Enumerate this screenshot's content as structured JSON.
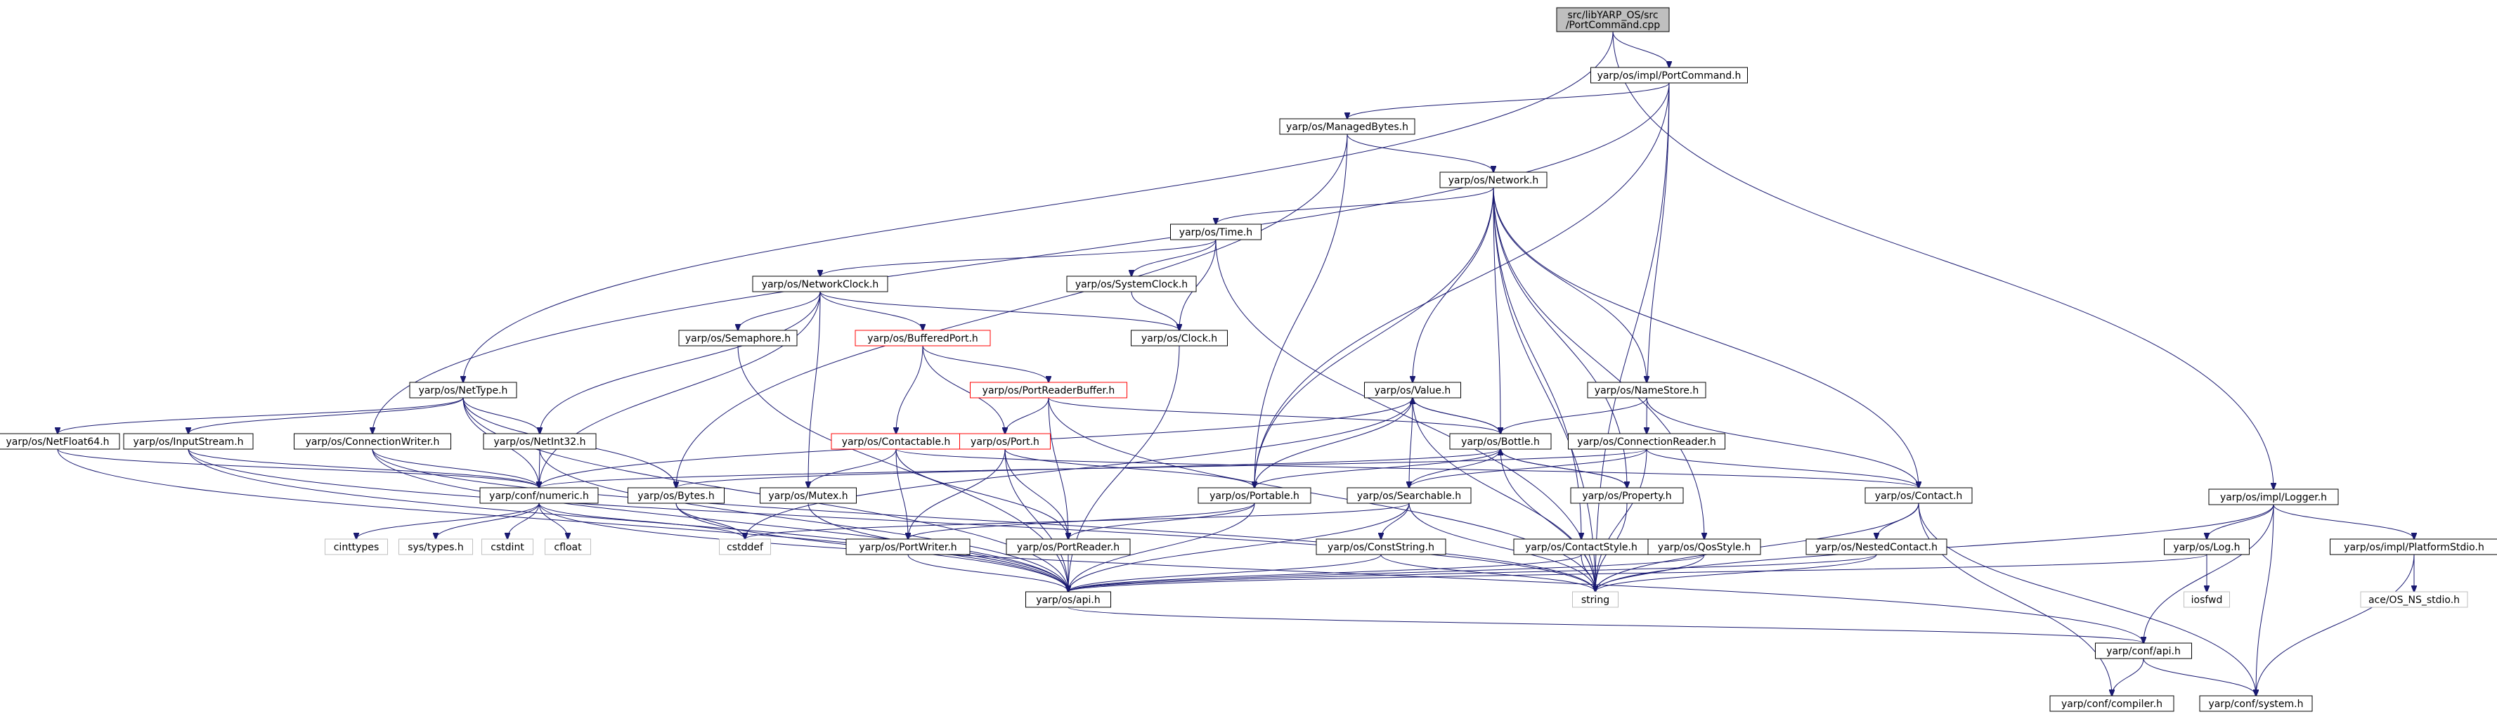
{
  "diagram_type": "include-dependency-graph",
  "colors": {
    "edge": "#191970",
    "node_border": "#000000",
    "root_fill": "#bfbfbf",
    "unlinked_border": "#ff0000",
    "system_border": "#bfbfbf",
    "text": "#000000"
  },
  "nodes": [
    {
      "id": "root",
      "label": [
        "src/libYARP_OS/src",
        "/PortCommand.cpp"
      ],
      "style": "root"
    },
    {
      "id": "portcommand_h",
      "label": [
        "yarp/os/impl/PortCommand.h"
      ],
      "style": "normal"
    },
    {
      "id": "nettype",
      "label": [
        "yarp/os/NetType.h"
      ],
      "style": "normal"
    },
    {
      "id": "logger",
      "label": [
        "yarp/os/impl/Logger.h"
      ],
      "style": "normal"
    },
    {
      "id": "managedbytes",
      "label": [
        "yarp/os/ManagedBytes.h"
      ],
      "style": "normal"
    },
    {
      "id": "network",
      "label": [
        "yarp/os/Network.h"
      ],
      "style": "normal"
    },
    {
      "id": "time",
      "label": [
        "yarp/os/Time.h"
      ],
      "style": "normal"
    },
    {
      "id": "networkclock",
      "label": [
        "yarp/os/NetworkClock.h"
      ],
      "style": "normal"
    },
    {
      "id": "systemclock",
      "label": [
        "yarp/os/SystemClock.h"
      ],
      "style": "normal"
    },
    {
      "id": "semaphore",
      "label": [
        "yarp/os/Semaphore.h"
      ],
      "style": "normal"
    },
    {
      "id": "bufferedport",
      "label": [
        "yarp/os/BufferedPort.h"
      ],
      "style": "unlinked"
    },
    {
      "id": "clock",
      "label": [
        "yarp/os/Clock.h"
      ],
      "style": "normal"
    },
    {
      "id": "portreaderbuffer",
      "label": [
        "yarp/os/PortReaderBuffer.h"
      ],
      "style": "unlinked"
    },
    {
      "id": "value",
      "label": [
        "yarp/os/Value.h"
      ],
      "style": "normal"
    },
    {
      "id": "namestore",
      "label": [
        "yarp/os/NameStore.h"
      ],
      "style": "normal"
    },
    {
      "id": "netfloat64",
      "label": [
        "yarp/os/NetFloat64.h"
      ],
      "style": "normal"
    },
    {
      "id": "inputstream",
      "label": [
        "yarp/os/InputStream.h"
      ],
      "style": "normal"
    },
    {
      "id": "connectionwriter",
      "label": [
        "yarp/os/ConnectionWriter.h"
      ],
      "style": "normal"
    },
    {
      "id": "netint32",
      "label": [
        "yarp/os/NetInt32.h"
      ],
      "style": "normal"
    },
    {
      "id": "contactable",
      "label": [
        "yarp/os/Contactable.h"
      ],
      "style": "unlinked"
    },
    {
      "id": "port",
      "label": [
        "yarp/os/Port.h"
      ],
      "style": "unlinked"
    },
    {
      "id": "bottle",
      "label": [
        "yarp/os/Bottle.h"
      ],
      "style": "normal"
    },
    {
      "id": "connectionreader",
      "label": [
        "yarp/os/ConnectionReader.h"
      ],
      "style": "normal"
    },
    {
      "id": "numeric",
      "label": [
        "yarp/conf/numeric.h"
      ],
      "style": "normal"
    },
    {
      "id": "bytes",
      "label": [
        "yarp/os/Bytes.h"
      ],
      "style": "normal"
    },
    {
      "id": "mutex",
      "label": [
        "yarp/os/Mutex.h"
      ],
      "style": "normal"
    },
    {
      "id": "portable",
      "label": [
        "yarp/os/Portable.h"
      ],
      "style": "normal"
    },
    {
      "id": "searchable",
      "label": [
        "yarp/os/Searchable.h"
      ],
      "style": "normal"
    },
    {
      "id": "property",
      "label": [
        "yarp/os/Property.h"
      ],
      "style": "normal"
    },
    {
      "id": "contact",
      "label": [
        "yarp/os/Contact.h"
      ],
      "style": "normal"
    },
    {
      "id": "cinttypes",
      "label": [
        "cinttypes"
      ],
      "style": "system"
    },
    {
      "id": "systypes",
      "label": [
        "sys/types.h"
      ],
      "style": "system"
    },
    {
      "id": "cstdint",
      "label": [
        "cstdint"
      ],
      "style": "system"
    },
    {
      "id": "cfloat",
      "label": [
        "cfloat"
      ],
      "style": "system"
    },
    {
      "id": "cstddef",
      "label": [
        "cstddef"
      ],
      "style": "system"
    },
    {
      "id": "portwriter",
      "label": [
        "yarp/os/PortWriter.h"
      ],
      "style": "normal"
    },
    {
      "id": "portreader",
      "label": [
        "yarp/os/PortReader.h"
      ],
      "style": "normal"
    },
    {
      "id": "conststring",
      "label": [
        "yarp/os/ConstString.h"
      ],
      "style": "normal"
    },
    {
      "id": "contactstyle",
      "label": [
        "yarp/os/ContactStyle.h"
      ],
      "style": "normal"
    },
    {
      "id": "qosstyle",
      "label": [
        "yarp/os/QosStyle.h"
      ],
      "style": "normal"
    },
    {
      "id": "nestedcontact",
      "label": [
        "yarp/os/NestedContact.h"
      ],
      "style": "normal"
    },
    {
      "id": "log",
      "label": [
        "yarp/os/Log.h"
      ],
      "style": "normal"
    },
    {
      "id": "platformstdio",
      "label": [
        "yarp/os/impl/PlatformStdio.h"
      ],
      "style": "normal"
    },
    {
      "id": "iosfwd",
      "label": [
        "iosfwd"
      ],
      "style": "system"
    },
    {
      "id": "ace_stdio",
      "label": [
        "ace/OS_NS_stdio.h"
      ],
      "style": "system"
    },
    {
      "id": "api_os",
      "label": [
        "yarp/os/api.h"
      ],
      "style": "normal"
    },
    {
      "id": "string",
      "label": [
        "string"
      ],
      "style": "system"
    },
    {
      "id": "conf_api",
      "label": [
        "yarp/conf/api.h"
      ],
      "style": "normal"
    },
    {
      "id": "compiler",
      "label": [
        "yarp/conf/compiler.h"
      ],
      "style": "normal"
    },
    {
      "id": "system",
      "label": [
        "yarp/conf/system.h"
      ],
      "style": "normal"
    }
  ],
  "edges": [
    [
      "root",
      "portcommand_h"
    ],
    [
      "root",
      "nettype"
    ],
    [
      "root",
      "logger"
    ],
    [
      "portcommand_h",
      "managedbytes"
    ],
    [
      "portcommand_h",
      "connectionwriter"
    ],
    [
      "portcommand_h",
      "portable"
    ],
    [
      "portcommand_h",
      "connectionreader"
    ],
    [
      "portcommand_h",
      "string"
    ],
    [
      "managedbytes",
      "network"
    ],
    [
      "managedbytes",
      "bytes"
    ],
    [
      "managedbytes",
      "portable"
    ],
    [
      "network",
      "time"
    ],
    [
      "network",
      "portable"
    ],
    [
      "network",
      "value"
    ],
    [
      "network",
      "namestore"
    ],
    [
      "network",
      "bottle"
    ],
    [
      "network",
      "contact"
    ],
    [
      "network",
      "property"
    ],
    [
      "network",
      "contactstyle"
    ],
    [
      "network",
      "qosstyle"
    ],
    [
      "network",
      "string"
    ],
    [
      "time",
      "networkclock"
    ],
    [
      "time",
      "systemclock"
    ],
    [
      "time",
      "clock"
    ],
    [
      "time",
      "string"
    ],
    [
      "networkclock",
      "semaphore"
    ],
    [
      "networkclock",
      "bufferedport"
    ],
    [
      "networkclock",
      "clock"
    ],
    [
      "networkclock",
      "netint32"
    ],
    [
      "networkclock",
      "numeric"
    ],
    [
      "networkclock",
      "mutex"
    ],
    [
      "systemclock",
      "clock"
    ],
    [
      "clock",
      "api_os"
    ],
    [
      "semaphore",
      "api_os"
    ],
    [
      "bufferedport",
      "portreaderbuffer"
    ],
    [
      "bufferedport",
      "contactable"
    ],
    [
      "bufferedport",
      "port"
    ],
    [
      "portreaderbuffer",
      "port"
    ],
    [
      "portreaderbuffer",
      "bottle"
    ],
    [
      "portreaderbuffer",
      "portreader"
    ],
    [
      "portreaderbuffer",
      "string"
    ],
    [
      "contactable",
      "mutex"
    ],
    [
      "contactable",
      "portwriter"
    ],
    [
      "contactable",
      "portreader"
    ],
    [
      "contactable",
      "contact"
    ],
    [
      "port",
      "portable"
    ],
    [
      "port",
      "portwriter"
    ],
    [
      "port",
      "portreader"
    ],
    [
      "port",
      "api_os"
    ],
    [
      "value",
      "bottle"
    ],
    [
      "value",
      "searchable"
    ],
    [
      "value",
      "portable"
    ],
    [
      "value",
      "numeric"
    ],
    [
      "value",
      "cstddef"
    ],
    [
      "value",
      "string"
    ],
    [
      "bottle",
      "value"
    ],
    [
      "bottle",
      "searchable"
    ],
    [
      "bottle",
      "portable"
    ],
    [
      "bottle",
      "property"
    ],
    [
      "bottle",
      "bytes"
    ],
    [
      "bottle",
      "string"
    ],
    [
      "property",
      "bottle"
    ],
    [
      "property",
      "string"
    ],
    [
      "namestore",
      "contact"
    ],
    [
      "namestore",
      "bottle"
    ],
    [
      "nettype",
      "netfloat64"
    ],
    [
      "nettype",
      "inputstream"
    ],
    [
      "nettype",
      "netint32"
    ],
    [
      "nettype",
      "numeric"
    ],
    [
      "nettype",
      "bytes"
    ],
    [
      "nettype",
      "api_os"
    ],
    [
      "netfloat64",
      "numeric"
    ],
    [
      "netfloat64",
      "api_os"
    ],
    [
      "inputstream",
      "numeric"
    ],
    [
      "inputstream",
      "api_os"
    ],
    [
      "inputstream",
      "string"
    ],
    [
      "connectionwriter",
      "numeric"
    ],
    [
      "connectionwriter",
      "api_os"
    ],
    [
      "connectionwriter",
      "string"
    ],
    [
      "netint32",
      "numeric"
    ],
    [
      "netint32",
      "api_os"
    ],
    [
      "connectionreader",
      "searchable"
    ],
    [
      "connectionreader",
      "contact"
    ],
    [
      "connectionreader",
      "numeric"
    ],
    [
      "connectionreader",
      "string"
    ],
    [
      "numeric",
      "cinttypes"
    ],
    [
      "numeric",
      "systypes"
    ],
    [
      "numeric",
      "cstdint"
    ],
    [
      "numeric",
      "cfloat"
    ],
    [
      "numeric",
      "cstddef"
    ],
    [
      "numeric",
      "conf_api"
    ],
    [
      "bytes",
      "cstddef"
    ],
    [
      "bytes",
      "api_os"
    ],
    [
      "mutex",
      "api_os"
    ],
    [
      "portable",
      "portwriter"
    ],
    [
      "portable",
      "portreader"
    ],
    [
      "portable",
      "api_os"
    ],
    [
      "searchable",
      "conststring"
    ],
    [
      "searchable",
      "cstddef"
    ],
    [
      "searchable",
      "api_os"
    ],
    [
      "searchable",
      "string"
    ],
    [
      "conststring",
      "api_os"
    ],
    [
      "conststring",
      "string"
    ],
    [
      "contactstyle",
      "api_os"
    ],
    [
      "contactstyle",
      "string"
    ],
    [
      "qosstyle",
      "api_os"
    ],
    [
      "qosstyle",
      "string"
    ],
    [
      "contact",
      "nestedcontact"
    ],
    [
      "contact",
      "string"
    ],
    [
      "contact",
      "compiler"
    ],
    [
      "contact",
      "system"
    ],
    [
      "nestedcontact",
      "api_os"
    ],
    [
      "nestedcontact",
      "string"
    ],
    [
      "portwriter",
      "api_os"
    ],
    [
      "portreader",
      "api_os"
    ],
    [
      "logger",
      "log"
    ],
    [
      "logger",
      "platformstdio"
    ],
    [
      "logger",
      "string"
    ],
    [
      "logger",
      "conf_api"
    ],
    [
      "logger",
      "system"
    ],
    [
      "log",
      "iosfwd"
    ],
    [
      "log",
      "api_os"
    ],
    [
      "platformstdio",
      "ace_stdio"
    ],
    [
      "platformstdio",
      "system"
    ],
    [
      "api_os",
      "conf_api"
    ],
    [
      "conf_api",
      "compiler"
    ],
    [
      "conf_api",
      "system"
    ]
  ]
}
